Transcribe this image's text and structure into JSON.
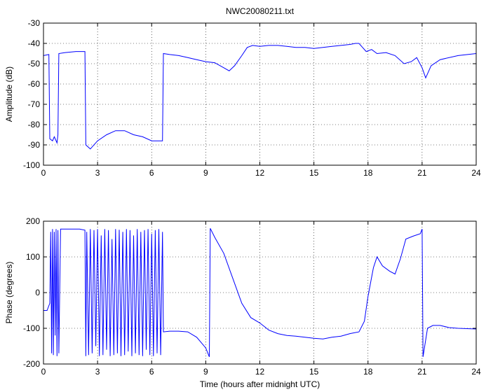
{
  "chart_data": [
    {
      "type": "line",
      "title": "NWC20080211.txt",
      "xlabel": "",
      "ylabel": "Amplitude (dB)",
      "xlim": [
        0,
        24
      ],
      "ylim": [
        -100,
        -30
      ],
      "xticks": [
        0,
        3,
        6,
        9,
        12,
        15,
        18,
        21,
        24
      ],
      "yticks": [
        -100,
        -90,
        -80,
        -70,
        -60,
        -50,
        -40,
        -30
      ],
      "grid": true,
      "series": [
        {
          "color": "#0000ff",
          "points": [
            [
              0.0,
              -46
            ],
            [
              0.3,
              -45.5
            ],
            [
              0.35,
              -87
            ],
            [
              0.5,
              -88
            ],
            [
              0.6,
              -86
            ],
            [
              0.75,
              -89
            ],
            [
              0.8,
              -85
            ],
            [
              0.85,
              -45
            ],
            [
              1.2,
              -44.5
            ],
            [
              1.8,
              -44
            ],
            [
              2.3,
              -44
            ],
            [
              2.35,
              -90
            ],
            [
              2.6,
              -92
            ],
            [
              3.0,
              -88
            ],
            [
              3.5,
              -85
            ],
            [
              4.0,
              -83
            ],
            [
              4.5,
              -83
            ],
            [
              5.0,
              -85
            ],
            [
              5.5,
              -86
            ],
            [
              6.0,
              -88
            ],
            [
              6.6,
              -88
            ],
            [
              6.65,
              -45
            ],
            [
              7.0,
              -45.5
            ],
            [
              7.5,
              -46
            ],
            [
              8.0,
              -47
            ],
            [
              8.5,
              -48
            ],
            [
              9.0,
              -49
            ],
            [
              9.5,
              -49.5
            ],
            [
              10.0,
              -52
            ],
            [
              10.3,
              -53.5
            ],
            [
              10.6,
              -51
            ],
            [
              11.0,
              -46
            ],
            [
              11.3,
              -42
            ],
            [
              11.6,
              -41
            ],
            [
              12.0,
              -41.5
            ],
            [
              12.5,
              -41
            ],
            [
              13.0,
              -41
            ],
            [
              13.5,
              -41.5
            ],
            [
              14.0,
              -42
            ],
            [
              14.5,
              -42
            ],
            [
              15.0,
              -42.5
            ],
            [
              15.5,
              -42
            ],
            [
              16.0,
              -41.5
            ],
            [
              16.5,
              -41
            ],
            [
              17.0,
              -40.5
            ],
            [
              17.3,
              -40
            ],
            [
              17.5,
              -40
            ],
            [
              17.7,
              -42
            ],
            [
              17.9,
              -44
            ],
            [
              18.2,
              -43
            ],
            [
              18.5,
              -45
            ],
            [
              19.0,
              -44.5
            ],
            [
              19.5,
              -46
            ],
            [
              20.0,
              -50
            ],
            [
              20.4,
              -49
            ],
            [
              20.7,
              -47
            ],
            [
              21.0,
              -52
            ],
            [
              21.2,
              -57
            ],
            [
              21.5,
              -51
            ],
            [
              22.0,
              -48
            ],
            [
              23.0,
              -46
            ],
            [
              24.0,
              -45
            ]
          ]
        }
      ]
    },
    {
      "type": "line",
      "title": "",
      "xlabel": "Time (hours after midnight UTC)",
      "ylabel": "Phase (degrees)",
      "xlim": [
        0,
        24
      ],
      "ylim": [
        -200,
        200
      ],
      "xticks": [
        0,
        3,
        6,
        9,
        12,
        15,
        18,
        21,
        24
      ],
      "yticks": [
        -200,
        -100,
        0,
        100,
        200
      ],
      "grid": true,
      "series": [
        {
          "color": "#0000ff",
          "points": [
            [
              0.0,
              -50
            ],
            [
              0.2,
              -50
            ],
            [
              0.35,
              -30
            ],
            [
              0.4,
              170
            ],
            [
              0.45,
              -170
            ],
            [
              0.5,
              178
            ],
            [
              0.55,
              -175
            ],
            [
              0.6,
              170
            ],
            [
              0.65,
              -120
            ],
            [
              0.7,
              178
            ],
            [
              0.75,
              -178
            ],
            [
              0.8,
              175
            ],
            [
              0.85,
              -170
            ],
            [
              0.95,
              178
            ],
            [
              1.5,
              178
            ],
            [
              2.0,
              178
            ],
            [
              2.3,
              175
            ],
            [
              2.35,
              -178
            ],
            [
              2.4,
              170
            ],
            [
              2.5,
              -175
            ],
            [
              2.6,
              178
            ],
            [
              2.7,
              -170
            ],
            [
              2.8,
              175
            ],
            [
              2.9,
              -150
            ],
            [
              3.0,
              178
            ],
            [
              3.1,
              -178
            ],
            [
              3.2,
              160
            ],
            [
              3.3,
              -175
            ],
            [
              3.4,
              178
            ],
            [
              3.5,
              -160
            ],
            [
              3.6,
              175
            ],
            [
              3.7,
              -178
            ],
            [
              3.8,
              150
            ],
            [
              3.9,
              -175
            ],
            [
              4.0,
              178
            ],
            [
              4.1,
              -170
            ],
            [
              4.2,
              176
            ],
            [
              4.3,
              -178
            ],
            [
              4.4,
              170
            ],
            [
              4.5,
              -175
            ],
            [
              4.6,
              178
            ],
            [
              4.7,
              -165
            ],
            [
              4.8,
              175
            ],
            [
              4.9,
              -178
            ],
            [
              5.0,
              160
            ],
            [
              5.1,
              -170
            ],
            [
              5.2,
              178
            ],
            [
              5.3,
              -175
            ],
            [
              5.4,
              170
            ],
            [
              5.5,
              -178
            ],
            [
              5.6,
              175
            ],
            [
              5.7,
              -160
            ],
            [
              5.8,
              178
            ],
            [
              5.9,
              -175
            ],
            [
              6.0,
              165
            ],
            [
              6.1,
              -178
            ],
            [
              6.2,
              175
            ],
            [
              6.3,
              -170
            ],
            [
              6.4,
              178
            ],
            [
              6.5,
              -175
            ],
            [
              6.6,
              170
            ],
            [
              6.65,
              -110
            ],
            [
              7.0,
              -108
            ],
            [
              7.5,
              -108
            ],
            [
              8.0,
              -110
            ],
            [
              8.5,
              -125
            ],
            [
              9.0,
              -155
            ],
            [
              9.2,
              -180
            ],
            [
              9.25,
              180
            ],
            [
              9.5,
              155
            ],
            [
              10.0,
              110
            ],
            [
              10.5,
              40
            ],
            [
              11.0,
              -30
            ],
            [
              11.5,
              -70
            ],
            [
              12.0,
              -85
            ],
            [
              12.5,
              -105
            ],
            [
              13.0,
              -115
            ],
            [
              13.5,
              -120
            ],
            [
              14.0,
              -122
            ],
            [
              14.5,
              -125
            ],
            [
              15.0,
              -128
            ],
            [
              15.5,
              -130
            ],
            [
              16.0,
              -125
            ],
            [
              16.5,
              -122
            ],
            [
              17.0,
              -115
            ],
            [
              17.5,
              -110
            ],
            [
              17.8,
              -80
            ],
            [
              18.0,
              -10
            ],
            [
              18.3,
              70
            ],
            [
              18.5,
              100
            ],
            [
              18.8,
              75
            ],
            [
              19.2,
              60
            ],
            [
              19.5,
              52
            ],
            [
              19.8,
              95
            ],
            [
              20.1,
              150
            ],
            [
              20.5,
              158
            ],
            [
              20.9,
              165
            ],
            [
              21.0,
              178
            ],
            [
              21.05,
              -180
            ],
            [
              21.3,
              -100
            ],
            [
              21.6,
              -92
            ],
            [
              22.0,
              -92
            ],
            [
              22.5,
              -98
            ],
            [
              23.0,
              -100
            ],
            [
              24.0,
              -102
            ]
          ]
        }
      ]
    }
  ]
}
